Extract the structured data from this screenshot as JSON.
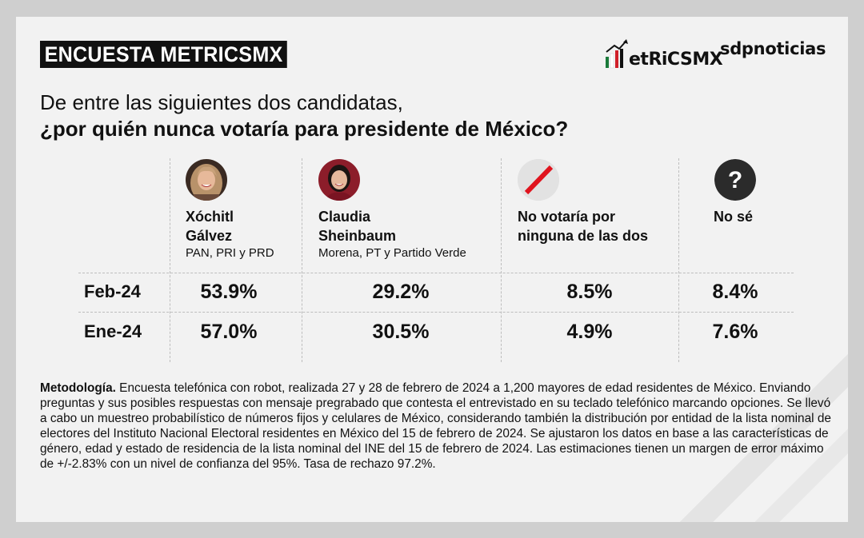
{
  "header": {
    "tag": "ENCUESTA METRICSMX",
    "logo_metrics": "etRiCSMX",
    "logo_sdp": "sdpnoticias"
  },
  "question": {
    "line1": "De entre las siguientes dos candidatas,",
    "line2": "¿por quién nunca votaría para presidente de México?"
  },
  "candidates": [
    {
      "name1": "Xóchitl",
      "name2": "Gálvez",
      "party": "PAN, PRI y PRD",
      "icon": "xochitl-galvez-avatar"
    },
    {
      "name1": "Claudia",
      "name2": "Sheinbaum",
      "party": "Morena, PT y Partido Verde",
      "icon": "claudia-sheinbaum-avatar"
    },
    {
      "name1": "No votaría por",
      "name2": "ninguna de las dos",
      "party": "",
      "icon": "no-vote-icon"
    },
    {
      "name1": "No sé",
      "name2": "",
      "party": "",
      "icon": "question-mark-icon"
    }
  ],
  "rows": [
    {
      "label": "Feb-24",
      "values": [
        "53.9%",
        "29.2%",
        "8.5%",
        "8.4%"
      ]
    },
    {
      "label": "Ene-24",
      "values": [
        "57.0%",
        "30.5%",
        "4.9%",
        "7.6%"
      ]
    }
  ],
  "chart_data": {
    "type": "table",
    "title": "¿por quién nunca votaría para presidente de México?",
    "columns": [
      "Xóchitl Gálvez",
      "Claudia Sheinbaum",
      "No votaría por ninguna de las dos",
      "No sé"
    ],
    "series": [
      {
        "name": "Feb-24",
        "values": [
          53.9,
          29.2,
          8.5,
          8.4
        ]
      },
      {
        "name": "Ene-24",
        "values": [
          57.0,
          30.5,
          4.9,
          7.6
        ]
      }
    ]
  },
  "methodology": {
    "label": "Metodología.",
    "text": " Encuesta telefónica con robot, realizada 27 y 28 de febrero de 2024 a 1,200 mayores de edad residentes de México. Enviando preguntas y sus posibles respuestas con mensaje pregrabado que contesta el entrevistado en su teclado telefónico marcando opciones. Se llevó a cabo un muestreo probabilístico de números fijos y celulares de México, considerando también la distribución por entidad de la lista nominal de electores del Instituto Nacional Electoral residentes en México del 15 de febrero de 2024. Se ajustaron los datos en base a las características de género, edad y estado de residencia de la lista nominal del INE del 15 de febrero de 2024. Las estimaciones tienen un margen de error máximo de +/-2.83% con un nivel de confianza del 95%. Tasa de rechazo 97.2%."
  },
  "colors": {
    "logo_green": "#1a7a3a",
    "logo_red": "#d0202a",
    "no_vote_red": "#e0141e",
    "dark_circle": "#2b2b2b"
  }
}
